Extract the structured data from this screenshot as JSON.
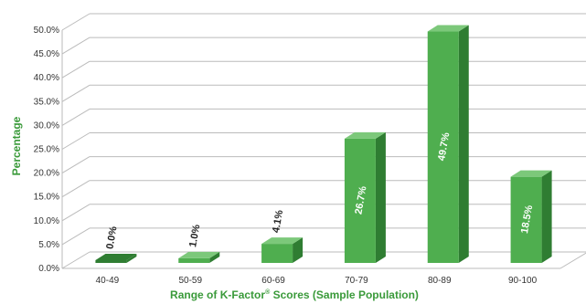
{
  "chart_data": {
    "type": "bar",
    "title": "",
    "xlabel": "Range of K-Factor",
    "xlabel_superscript": "®",
    "xlabel_suffix": " Scores (Sample Population)",
    "ylabel": "Percentage",
    "categories": [
      "40-49",
      "50-59",
      "60-69",
      "70-79",
      "80-89",
      "90-100"
    ],
    "values": [
      0.0,
      1.0,
      4.1,
      26.7,
      49.7,
      18.5
    ],
    "value_labels": [
      "0.0%",
      "1.0%",
      "4.1%",
      "26.7%",
      "49.7%",
      "18.5%"
    ],
    "y_ticks": [
      "0.0%",
      "5.0%",
      "10.0%",
      "15.0%",
      "20.0%",
      "25.0%",
      "30.0%",
      "35.0%",
      "40.0%",
      "45.0%",
      "50.0%"
    ],
    "ylim": [
      0,
      50
    ],
    "grid": true,
    "legend": "none",
    "style": "3d",
    "colors": {
      "bar_front": "#4fae4f",
      "bar_side": "#2f7d32",
      "bar_top": "#7cc87a",
      "label_color": "#3a9a3a",
      "grid": "#bbbbbb"
    }
  }
}
